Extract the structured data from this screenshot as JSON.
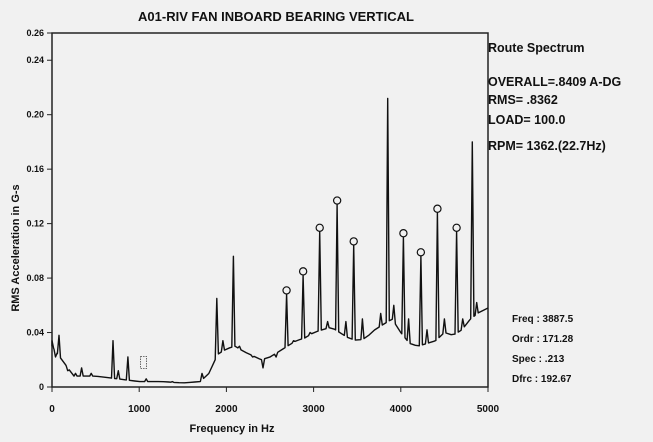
{
  "chart_data": {
    "type": "line",
    "title": "A01-RIV FAN INBOARD BEARING VERTICAL",
    "xlabel": "Frequency in Hz",
    "ylabel": "RMS Acceleration in G-s",
    "xlim": [
      0,
      5000
    ],
    "ylim": [
      0,
      0.26
    ],
    "x_ticks": [
      0,
      1000,
      2000,
      3000,
      4000,
      5000
    ],
    "x_tick_labels": [
      "0",
      "1000",
      "2000",
      "3000",
      "4000",
      "5000"
    ],
    "y_ticks": [
      0,
      0.04,
      0.08,
      0.12,
      0.16,
      0.2,
      0.24,
      0.26
    ],
    "y_tick_labels": [
      "0",
      "0.04",
      "0.08",
      "0.12",
      "0.16",
      "0.20",
      "0.24",
      "0.26"
    ],
    "grid": false,
    "baseline": [
      [
        0,
        0.03
      ],
      [
        250,
        0.008
      ],
      [
        500,
        0.008
      ],
      [
        750,
        0.006
      ],
      [
        1000,
        0.004
      ],
      [
        1250,
        0.004
      ],
      [
        1500,
        0.003
      ],
      [
        1700,
        0.004
      ],
      [
        1800,
        0.01
      ],
      [
        1900,
        0.024
      ],
      [
        2000,
        0.028
      ],
      [
        2100,
        0.03
      ],
      [
        2200,
        0.026
      ],
      [
        2400,
        0.02
      ],
      [
        2500,
        0.022
      ],
      [
        2600,
        0.026
      ],
      [
        2700,
        0.03
      ],
      [
        2800,
        0.034
      ],
      [
        2900,
        0.036
      ],
      [
        3000,
        0.04
      ],
      [
        3100,
        0.042
      ],
      [
        3200,
        0.044
      ],
      [
        3300,
        0.04
      ],
      [
        3400,
        0.036
      ],
      [
        3500,
        0.034
      ],
      [
        3600,
        0.036
      ],
      [
        3700,
        0.042
      ],
      [
        3800,
        0.046
      ],
      [
        3900,
        0.05
      ],
      [
        4000,
        0.04
      ],
      [
        4100,
        0.032
      ],
      [
        4200,
        0.03
      ],
      [
        4300,
        0.032
      ],
      [
        4400,
        0.034
      ],
      [
        4500,
        0.04
      ],
      [
        4600,
        0.038
      ],
      [
        4700,
        0.042
      ],
      [
        4800,
        0.05
      ],
      [
        4900,
        0.055
      ],
      [
        5000,
        0.058
      ]
    ],
    "peaks": [
      [
        0,
        0.034
      ],
      [
        40,
        0.022
      ],
      [
        80,
        0.038
      ],
      [
        180,
        0.012
      ],
      [
        270,
        0.01
      ],
      [
        340,
        0.014
      ],
      [
        450,
        0.01
      ],
      [
        700,
        0.034
      ],
      [
        760,
        0.012
      ],
      [
        870,
        0.022
      ],
      [
        1080,
        0.006
      ],
      [
        1380,
        0.004
      ],
      [
        1720,
        0.01
      ],
      [
        1890,
        0.065
      ],
      [
        1960,
        0.034
      ],
      [
        2080,
        0.096
      ],
      [
        2150,
        0.03
      ],
      [
        2300,
        0.022
      ],
      [
        2420,
        0.014
      ],
      [
        2570,
        0.022
      ],
      [
        2690,
        0.068
      ],
      [
        2770,
        0.034
      ],
      [
        2880,
        0.082
      ],
      [
        2960,
        0.04
      ],
      [
        3070,
        0.114
      ],
      [
        3160,
        0.048
      ],
      [
        3270,
        0.134
      ],
      [
        3370,
        0.048
      ],
      [
        3460,
        0.104
      ],
      [
        3560,
        0.05
      ],
      [
        3770,
        0.054
      ],
      [
        3850,
        0.212
      ],
      [
        3920,
        0.06
      ],
      [
        4030,
        0.11
      ],
      [
        4090,
        0.05
      ],
      [
        4230,
        0.096
      ],
      [
        4300,
        0.042
      ],
      [
        4420,
        0.128
      ],
      [
        4500,
        0.05
      ],
      [
        4640,
        0.114
      ],
      [
        4710,
        0.05
      ],
      [
        4820,
        0.18
      ],
      [
        4870,
        0.062
      ]
    ],
    "markers": [
      {
        "x": 2690,
        "y": 0.068
      },
      {
        "x": 2880,
        "y": 0.082
      },
      {
        "x": 3070,
        "y": 0.114
      },
      {
        "x": 3270,
        "y": 0.134
      },
      {
        "x": 3460,
        "y": 0.104
      },
      {
        "x": 4030,
        "y": 0.11
      },
      {
        "x": 4230,
        "y": 0.096
      },
      {
        "x": 4420,
        "y": 0.128
      },
      {
        "x": 4640,
        "y": 0.114
      }
    ],
    "cursor_marker": {
      "x": 1050,
      "y": 0.018
    }
  },
  "info_panel": {
    "title": "Route Spectrum",
    "overall": "OVERALL=.8409 A-DG",
    "rms": "RMS= .8362",
    "load": "LOAD= 100.0",
    "rpm": "RPM= 1362.(22.7Hz)"
  },
  "cursor_readout": {
    "freq": "Freq : 3887.5",
    "ordr": "Ordr : 171.28",
    "spec": "Spec : .213",
    "dfrc": "Dfrc : 192.67"
  }
}
